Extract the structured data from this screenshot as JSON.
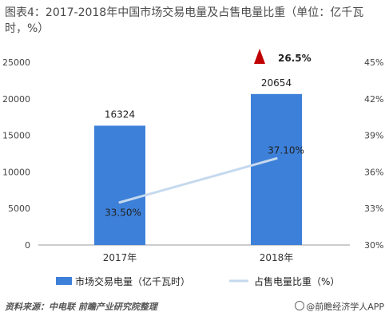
{
  "title": "图表4：2017-2018年中国市场交易电量及占售电量比重（单位：亿千瓦时，%）",
  "footer": {
    "source": "资料来源：中电联 前瞻产业研究院整理",
    "credit": "@前瞻经济学人APP"
  },
  "colors": {
    "bar": "#3d80d9",
    "line": "#c5d9ee",
    "marker": "#c00000",
    "axis": "#999999"
  },
  "chart_data": {
    "type": "bar",
    "categories": [
      "2017年",
      "2018年"
    ],
    "series": [
      {
        "name": "市场交易电量（亿千瓦时）",
        "type": "bar",
        "axis": "left",
        "values": [
          16324,
          20654
        ],
        "labels": [
          "16324",
          "20654"
        ]
      },
      {
        "name": "占售电量比重（%）",
        "type": "line",
        "axis": "right",
        "values": [
          33.5,
          37.1
        ],
        "labels": [
          "33.50%",
          "37.10%"
        ]
      }
    ],
    "y_left": {
      "min": 0,
      "max": 25000,
      "ticks": [
        "0",
        "5000",
        "10000",
        "15000",
        "20000",
        "25000"
      ]
    },
    "y_right": {
      "min": 30,
      "max": 45,
      "ticks": [
        "30%",
        "33%",
        "36%",
        "39%",
        "42%",
        "45%"
      ]
    },
    "annotation": {
      "text": "26.5%",
      "icon": "up-triangle-icon"
    },
    "legend_position": "bottom"
  }
}
